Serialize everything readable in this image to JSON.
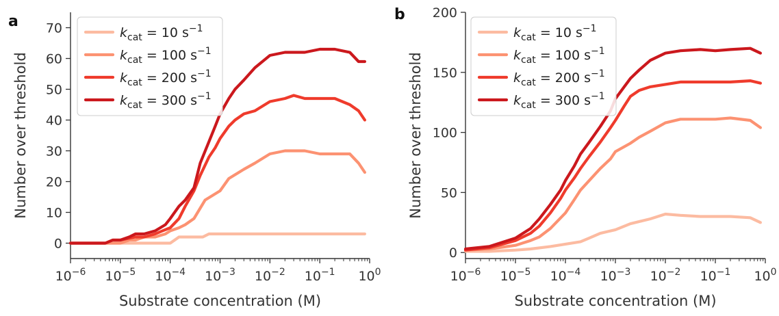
{
  "chart_data": [
    {
      "type": "line",
      "panel_label": "a",
      "xlabel": "Substrate concentration (M)",
      "ylabel": "Number over threshold",
      "xscale": "log",
      "xlim": [
        1e-06,
        1
      ],
      "ylim": [
        -5,
        75
      ],
      "xticks": [
        1e-06,
        1e-05,
        0.0001,
        0.001,
        0.01,
        0.1,
        1
      ],
      "xtick_labels": [
        {
          "base": "10",
          "exp": "−6"
        },
        {
          "base": "10",
          "exp": "−5"
        },
        {
          "base": "10",
          "exp": "−4"
        },
        {
          "base": "10",
          "exp": "−3"
        },
        {
          "base": "10",
          "exp": "−2"
        },
        {
          "base": "10",
          "exp": "−1"
        },
        {
          "base": "10",
          "exp": "0"
        }
      ],
      "yticks": [
        0,
        10,
        20,
        30,
        40,
        50,
        60,
        70
      ],
      "ytick_labels": [
        "0",
        "10",
        "20",
        "30",
        "40",
        "50",
        "60",
        "70"
      ],
      "legend_position": "top-left",
      "grid": false,
      "series": [
        {
          "name": {
            "k": "k",
            "sub": "cat",
            "rest": " = 10 s",
            "sup": "−1"
          },
          "color": "#fcbba1",
          "x": [
            1e-06,
            2e-06,
            5e-06,
            1e-05,
            2e-05,
            5e-05,
            0.0001,
            0.00015,
            0.0003,
            0.00045,
            0.0006,
            0.001,
            0.01,
            0.1,
            0.8
          ],
          "y": [
            0,
            0,
            0,
            0,
            0,
            0,
            0,
            2,
            2,
            2,
            3,
            3,
            3,
            3,
            3
          ]
        },
        {
          "name": {
            "k": "k",
            "sub": "cat",
            "rest": " = 100 s",
            "sup": "−1"
          },
          "color": "#fc9272",
          "x": [
            1e-06,
            5e-06,
            1e-05,
            1.5e-05,
            2e-05,
            3e-05,
            5e-05,
            8e-05,
            0.0001,
            0.00015,
            0.0002,
            0.0003,
            0.0005,
            0.001,
            0.0015,
            0.003,
            0.005,
            0.01,
            0.02,
            0.05,
            0.1,
            0.2,
            0.4,
            0.6,
            0.8
          ],
          "y": [
            0,
            0,
            0,
            1,
            1,
            2,
            2,
            3,
            4,
            5,
            6,
            8,
            14,
            17,
            21,
            24,
            26,
            29,
            30,
            30,
            29,
            29,
            29,
            26,
            23
          ]
        },
        {
          "name": {
            "k": "k",
            "sub": "cat",
            "rest": " = 200 s",
            "sup": "−1"
          },
          "color": "#ef3b2c",
          "x": [
            1e-06,
            5e-06,
            7e-06,
            1e-05,
            2e-05,
            3e-05,
            5e-05,
            7e-05,
            0.0001,
            0.00015,
            0.0002,
            0.0003,
            0.0004,
            0.0006,
            0.0008,
            0.001,
            0.0015,
            0.002,
            0.003,
            0.005,
            0.01,
            0.02,
            0.03,
            0.05,
            0.1,
            0.2,
            0.4,
            0.6,
            0.8
          ],
          "y": [
            0,
            0,
            1,
            1,
            2,
            2,
            3,
            4,
            5,
            8,
            12,
            17,
            22,
            28,
            31,
            34,
            38,
            40,
            42,
            43,
            46,
            47,
            48,
            47,
            47,
            47,
            45,
            43,
            40
          ]
        },
        {
          "name": {
            "k": "k",
            "sub": "cat",
            "rest": " = 300 s",
            "sup": "−1"
          },
          "color": "#cb181d",
          "x": [
            1e-06,
            5e-06,
            7e-06,
            1e-05,
            1.5e-05,
            2e-05,
            3e-05,
            5e-05,
            8e-05,
            0.0001,
            0.00015,
            0.0002,
            0.0003,
            0.0004,
            0.0006,
            0.0008,
            0.001,
            0.0015,
            0.002,
            0.003,
            0.005,
            0.01,
            0.02,
            0.05,
            0.1,
            0.2,
            0.4,
            0.6,
            0.8
          ],
          "y": [
            0,
            0,
            1,
            1,
            2,
            3,
            3,
            4,
            6,
            8,
            12,
            14,
            18,
            26,
            33,
            38,
            42,
            47,
            50,
            53,
            57,
            61,
            62,
            62,
            63,
            63,
            62,
            59,
            59
          ]
        }
      ]
    },
    {
      "type": "line",
      "panel_label": "b",
      "xlabel": "Substrate concentration (M)",
      "ylabel": "Number over threshold",
      "xscale": "log",
      "xlim": [
        1e-06,
        1
      ],
      "ylim": [
        -5,
        200
      ],
      "xticks": [
        1e-06,
        1e-05,
        0.0001,
        0.001,
        0.01,
        0.1,
        1
      ],
      "xtick_labels": [
        {
          "base": "10",
          "exp": "−6"
        },
        {
          "base": "10",
          "exp": "−5"
        },
        {
          "base": "10",
          "exp": "−4"
        },
        {
          "base": "10",
          "exp": "−3"
        },
        {
          "base": "10",
          "exp": "−2"
        },
        {
          "base": "10",
          "exp": "−1"
        },
        {
          "base": "10",
          "exp": "0"
        }
      ],
      "yticks": [
        0,
        50,
        100,
        150,
        200
      ],
      "ytick_labels": [
        "0",
        "50",
        "100",
        "150",
        "200"
      ],
      "legend_position": "top-left",
      "grid": false,
      "series": [
        {
          "name": {
            "k": "k",
            "sub": "cat",
            "rest": " = 10 s",
            "sup": "−1"
          },
          "color": "#fcbba1",
          "x": [
            1e-06,
            3e-06,
            1e-05,
            2e-05,
            5e-05,
            0.0001,
            0.0002,
            0.0003,
            0.0005,
            0.001,
            0.002,
            0.005,
            0.01,
            0.02,
            0.05,
            0.1,
            0.2,
            0.5,
            0.8
          ],
          "y": [
            1,
            1,
            2,
            3,
            5,
            7,
            9,
            12,
            16,
            19,
            24,
            28,
            32,
            31,
            30,
            30,
            30,
            29,
            25
          ]
        },
        {
          "name": {
            "k": "k",
            "sub": "cat",
            "rest": " = 100 s",
            "sup": "−1"
          },
          "color": "#fc9272",
          "x": [
            1e-06,
            3e-06,
            1e-05,
            2e-05,
            3e-05,
            5e-05,
            0.0001,
            0.00015,
            0.0002,
            0.0003,
            0.0005,
            0.0008,
            0.001,
            0.002,
            0.003,
            0.005,
            0.01,
            0.02,
            0.05,
            0.1,
            0.2,
            0.5,
            0.8
          ],
          "y": [
            2,
            3,
            6,
            10,
            13,
            20,
            33,
            44,
            52,
            60,
            70,
            78,
            84,
            91,
            96,
            101,
            108,
            111,
            111,
            111,
            112,
            110,
            104
          ]
        },
        {
          "name": {
            "k": "k",
            "sub": "cat",
            "rest": " = 200 s",
            "sup": "−1"
          },
          "color": "#ef3b2c",
          "x": [
            1e-06,
            3e-06,
            1e-05,
            2e-05,
            3e-05,
            5e-05,
            8e-05,
            0.0001,
            0.00015,
            0.0002,
            0.0003,
            0.0005,
            0.0008,
            0.001,
            0.0015,
            0.002,
            0.003,
            0.005,
            0.01,
            0.02,
            0.05,
            0.1,
            0.2,
            0.5,
            0.8
          ],
          "y": [
            2,
            4,
            10,
            16,
            22,
            33,
            45,
            52,
            62,
            70,
            80,
            92,
            104,
            110,
            122,
            130,
            135,
            138,
            140,
            142,
            142,
            142,
            142,
            143,
            141
          ]
        },
        {
          "name": {
            "k": "k",
            "sub": "cat",
            "rest": " = 300 s",
            "sup": "−1"
          },
          "color": "#cb181d",
          "x": [
            1e-06,
            3e-06,
            1e-05,
            2e-05,
            3e-05,
            5e-05,
            8e-05,
            0.0001,
            0.00015,
            0.0002,
            0.0003,
            0.0005,
            0.0008,
            0.001,
            0.0015,
            0.002,
            0.003,
            0.005,
            0.01,
            0.02,
            0.05,
            0.1,
            0.2,
            0.5,
            0.8
          ],
          "y": [
            3,
            5,
            12,
            20,
            28,
            40,
            52,
            60,
            72,
            82,
            92,
            105,
            118,
            128,
            138,
            145,
            152,
            160,
            166,
            168,
            169,
            168,
            169,
            170,
            166
          ]
        }
      ]
    }
  ]
}
